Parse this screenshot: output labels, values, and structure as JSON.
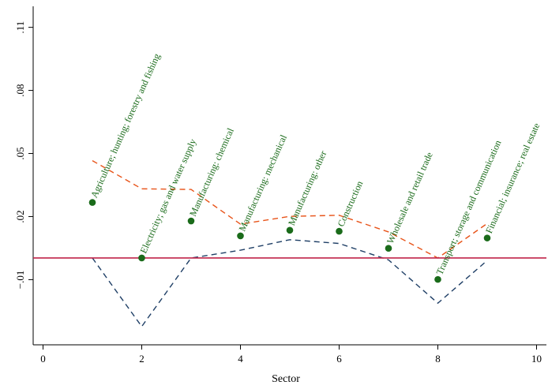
{
  "chart_data": {
    "type": "scatter",
    "title": "",
    "xlabel": "Sector",
    "ylabel": "",
    "xlim": [
      -0.2,
      10.2
    ],
    "ylim": [
      -0.041,
      0.12
    ],
    "x_ticks": [
      0,
      2,
      4,
      6,
      8,
      10
    ],
    "x_tick_labels": [
      "0",
      "2",
      "4",
      "6",
      "8",
      "10"
    ],
    "y_ticks": [
      -0.01,
      0.02,
      0.05,
      0.08,
      0.11
    ],
    "y_tick_labels": [
      "−.01",
      ".02",
      ".05",
      ".08",
      ".11"
    ],
    "grid": false,
    "legend": "none",
    "series": [
      {
        "kind": "points",
        "color": "#1a6b1a",
        "x": [
          1,
          2,
          3,
          4,
          5,
          6,
          7,
          8,
          9
        ],
        "y": [
          0.0267,
          0.0003,
          0.0179,
          0.0108,
          0.0135,
          0.013,
          0.0049,
          -0.0099,
          0.0098
        ],
        "labels": [
          "Agriculture; hunting; forestry and fishing",
          "Electricity; gas and water supply",
          "Manufacturing: chemical",
          "Manufacturing: mechanical",
          "Manufacturing: other",
          "Construction",
          "Wholesale and retail trade",
          "Transport; storage and communication",
          "Financial; insurance; real estate"
        ]
      },
      {
        "kind": "dashed-line",
        "color": "#e8541a",
        "x": [
          1,
          2,
          3,
          4,
          5,
          6,
          7,
          8,
          9
        ],
        "y": [
          0.0466,
          0.0332,
          0.0329,
          0.0164,
          0.0201,
          0.0206,
          0.0127,
          0.0003,
          0.0167
        ]
      },
      {
        "kind": "dashed-line",
        "color": "#1f3f66",
        "x": [
          1,
          2,
          3,
          4,
          5,
          6,
          7,
          8,
          9
        ],
        "y": [
          0.0003,
          -0.0323,
          0.0003,
          0.004,
          0.009,
          0.0072,
          -0.0006,
          -0.0212,
          -0.0009
        ]
      },
      {
        "kind": "hline",
        "color": "#c0254a",
        "y": 0.0003
      }
    ]
  }
}
